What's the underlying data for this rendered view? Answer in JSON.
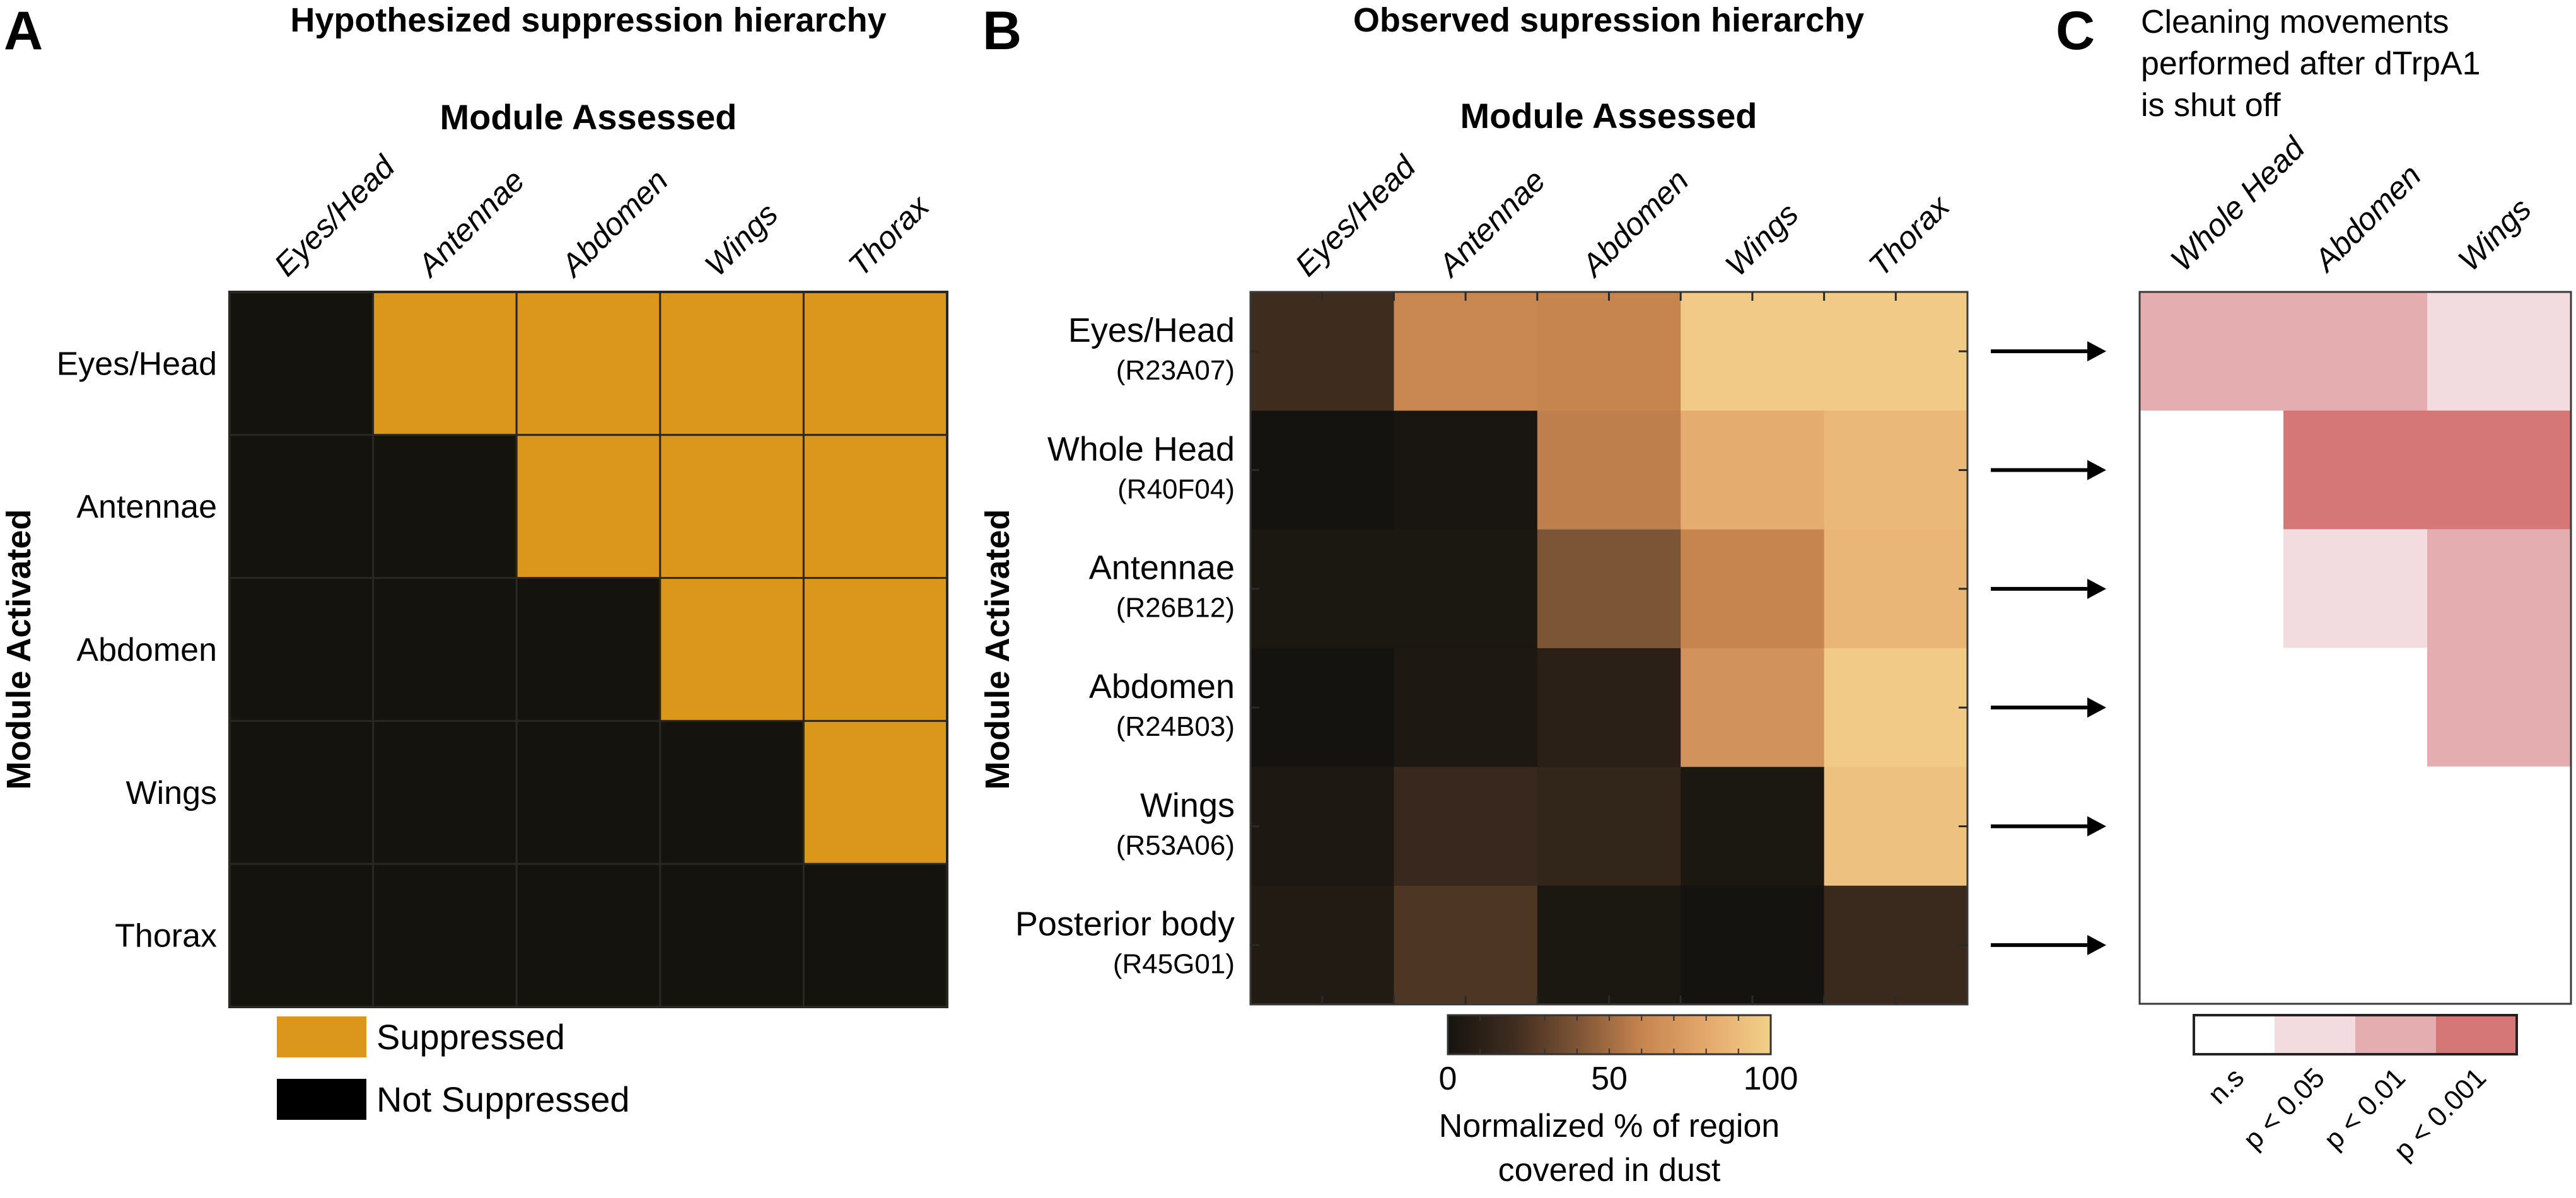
{
  "figure": {
    "panels": [
      "A",
      "B",
      "C"
    ]
  },
  "chart_data": [
    {
      "panel": "A",
      "type": "heatmap",
      "title": "Hypothesized suppression hierarchy",
      "xlabel": "Module Assessed",
      "ylabel": "Module Activated",
      "columns": [
        "Eyes/Head",
        "Antennae",
        "Abdomen",
        "Wings",
        "Thorax"
      ],
      "rows": [
        "Eyes/Head",
        "Antennae",
        "Abdomen",
        "Wings",
        "Thorax"
      ],
      "values": [
        [
          0,
          1,
          1,
          1,
          1
        ],
        [
          0,
          0,
          1,
          1,
          1
        ],
        [
          0,
          0,
          0,
          1,
          1
        ],
        [
          0,
          0,
          0,
          0,
          1
        ],
        [
          0,
          0,
          0,
          0,
          0
        ]
      ],
      "legend": [
        {
          "label": "Suppressed",
          "value": 1,
          "color": "#db961c"
        },
        {
          "label": "Not Suppressed",
          "value": 0,
          "color": "#000000"
        }
      ],
      "cell_colors": {
        "1": "#db961c",
        "0": "#15130e"
      },
      "legend_placement": "bottom-left"
    },
    {
      "panel": "B",
      "type": "heatmap",
      "title": "Observed supression hierarchy",
      "xlabel": "Module Assessed",
      "ylabel": "Module Activated",
      "columns": [
        "Eyes/Head",
        "Antennae",
        "Abdomen",
        "Wings",
        "Thorax"
      ],
      "rows": [
        {
          "label": "Eyes/Head",
          "line": "(R23A07)"
        },
        {
          "label": "Whole Head",
          "line": "(R40F04)"
        },
        {
          "label": "Antennae",
          "line": "(R26B12)"
        },
        {
          "label": "Abdomen",
          "line": "(R24B03)"
        },
        {
          "label": "Wings",
          "line": "(R53A06)"
        },
        {
          "label": "Posterior body",
          "line": "(R45G01)"
        }
      ],
      "values": [
        [
          20,
          62,
          60,
          97,
          97
        ],
        [
          0,
          2,
          58,
          82,
          88
        ],
        [
          3,
          3,
          40,
          60,
          87
        ],
        [
          0,
          4,
          10,
          68,
          97
        ],
        [
          4,
          17,
          14,
          3,
          93
        ],
        [
          6,
          25,
          3,
          0,
          18
        ]
      ],
      "colorbar": {
        "label_line1": "Normalized % of region",
        "label_line2": "covered in dust",
        "range": [
          0,
          100
        ],
        "tick_labels": [
          "0",
          "50",
          "100"
        ],
        "tick_values": [
          0,
          50,
          100
        ],
        "minor_tick_step": 10,
        "stops": [
          {
            "v": 0,
            "color": "#15130f"
          },
          {
            "v": 20,
            "color": "#3e2c1f"
          },
          {
            "v": 40,
            "color": "#7c5436"
          },
          {
            "v": 60,
            "color": "#c6844f"
          },
          {
            "v": 80,
            "color": "#e4a86c"
          },
          {
            "v": 100,
            "color": "#f2d08a"
          }
        ],
        "placement": "bottom"
      }
    },
    {
      "panel": "C",
      "type": "heatmap",
      "title_lines": [
        "Cleaning movements",
        "performed after dTrpA1",
        "is shut off"
      ],
      "columns": [
        "Whole Head",
        "Abdomen",
        "Wings"
      ],
      "rows_ref": "same rows as panel B (arrows)",
      "values": [
        [
          "p < 0.01",
          "p < 0.01",
          "p < 0.05"
        ],
        [
          "n.s",
          "p < 0.001",
          "p < 0.001"
        ],
        [
          "n.s",
          "p < 0.05",
          "p < 0.01"
        ],
        [
          "n.s",
          "n.s",
          "p < 0.01"
        ],
        [
          "n.s",
          "n.s",
          "n.s"
        ],
        [
          "n.s",
          "n.s",
          "n.s"
        ]
      ],
      "legend": [
        {
          "label": "n.s",
          "color": "#ffffff"
        },
        {
          "label": "p < 0.05",
          "color": "#f2dcdf"
        },
        {
          "label": "p < 0.01",
          "color": "#e4adb0"
        },
        {
          "label": "p < 0.001",
          "color": "#d47776"
        }
      ],
      "legend_placement": "bottom"
    }
  ]
}
